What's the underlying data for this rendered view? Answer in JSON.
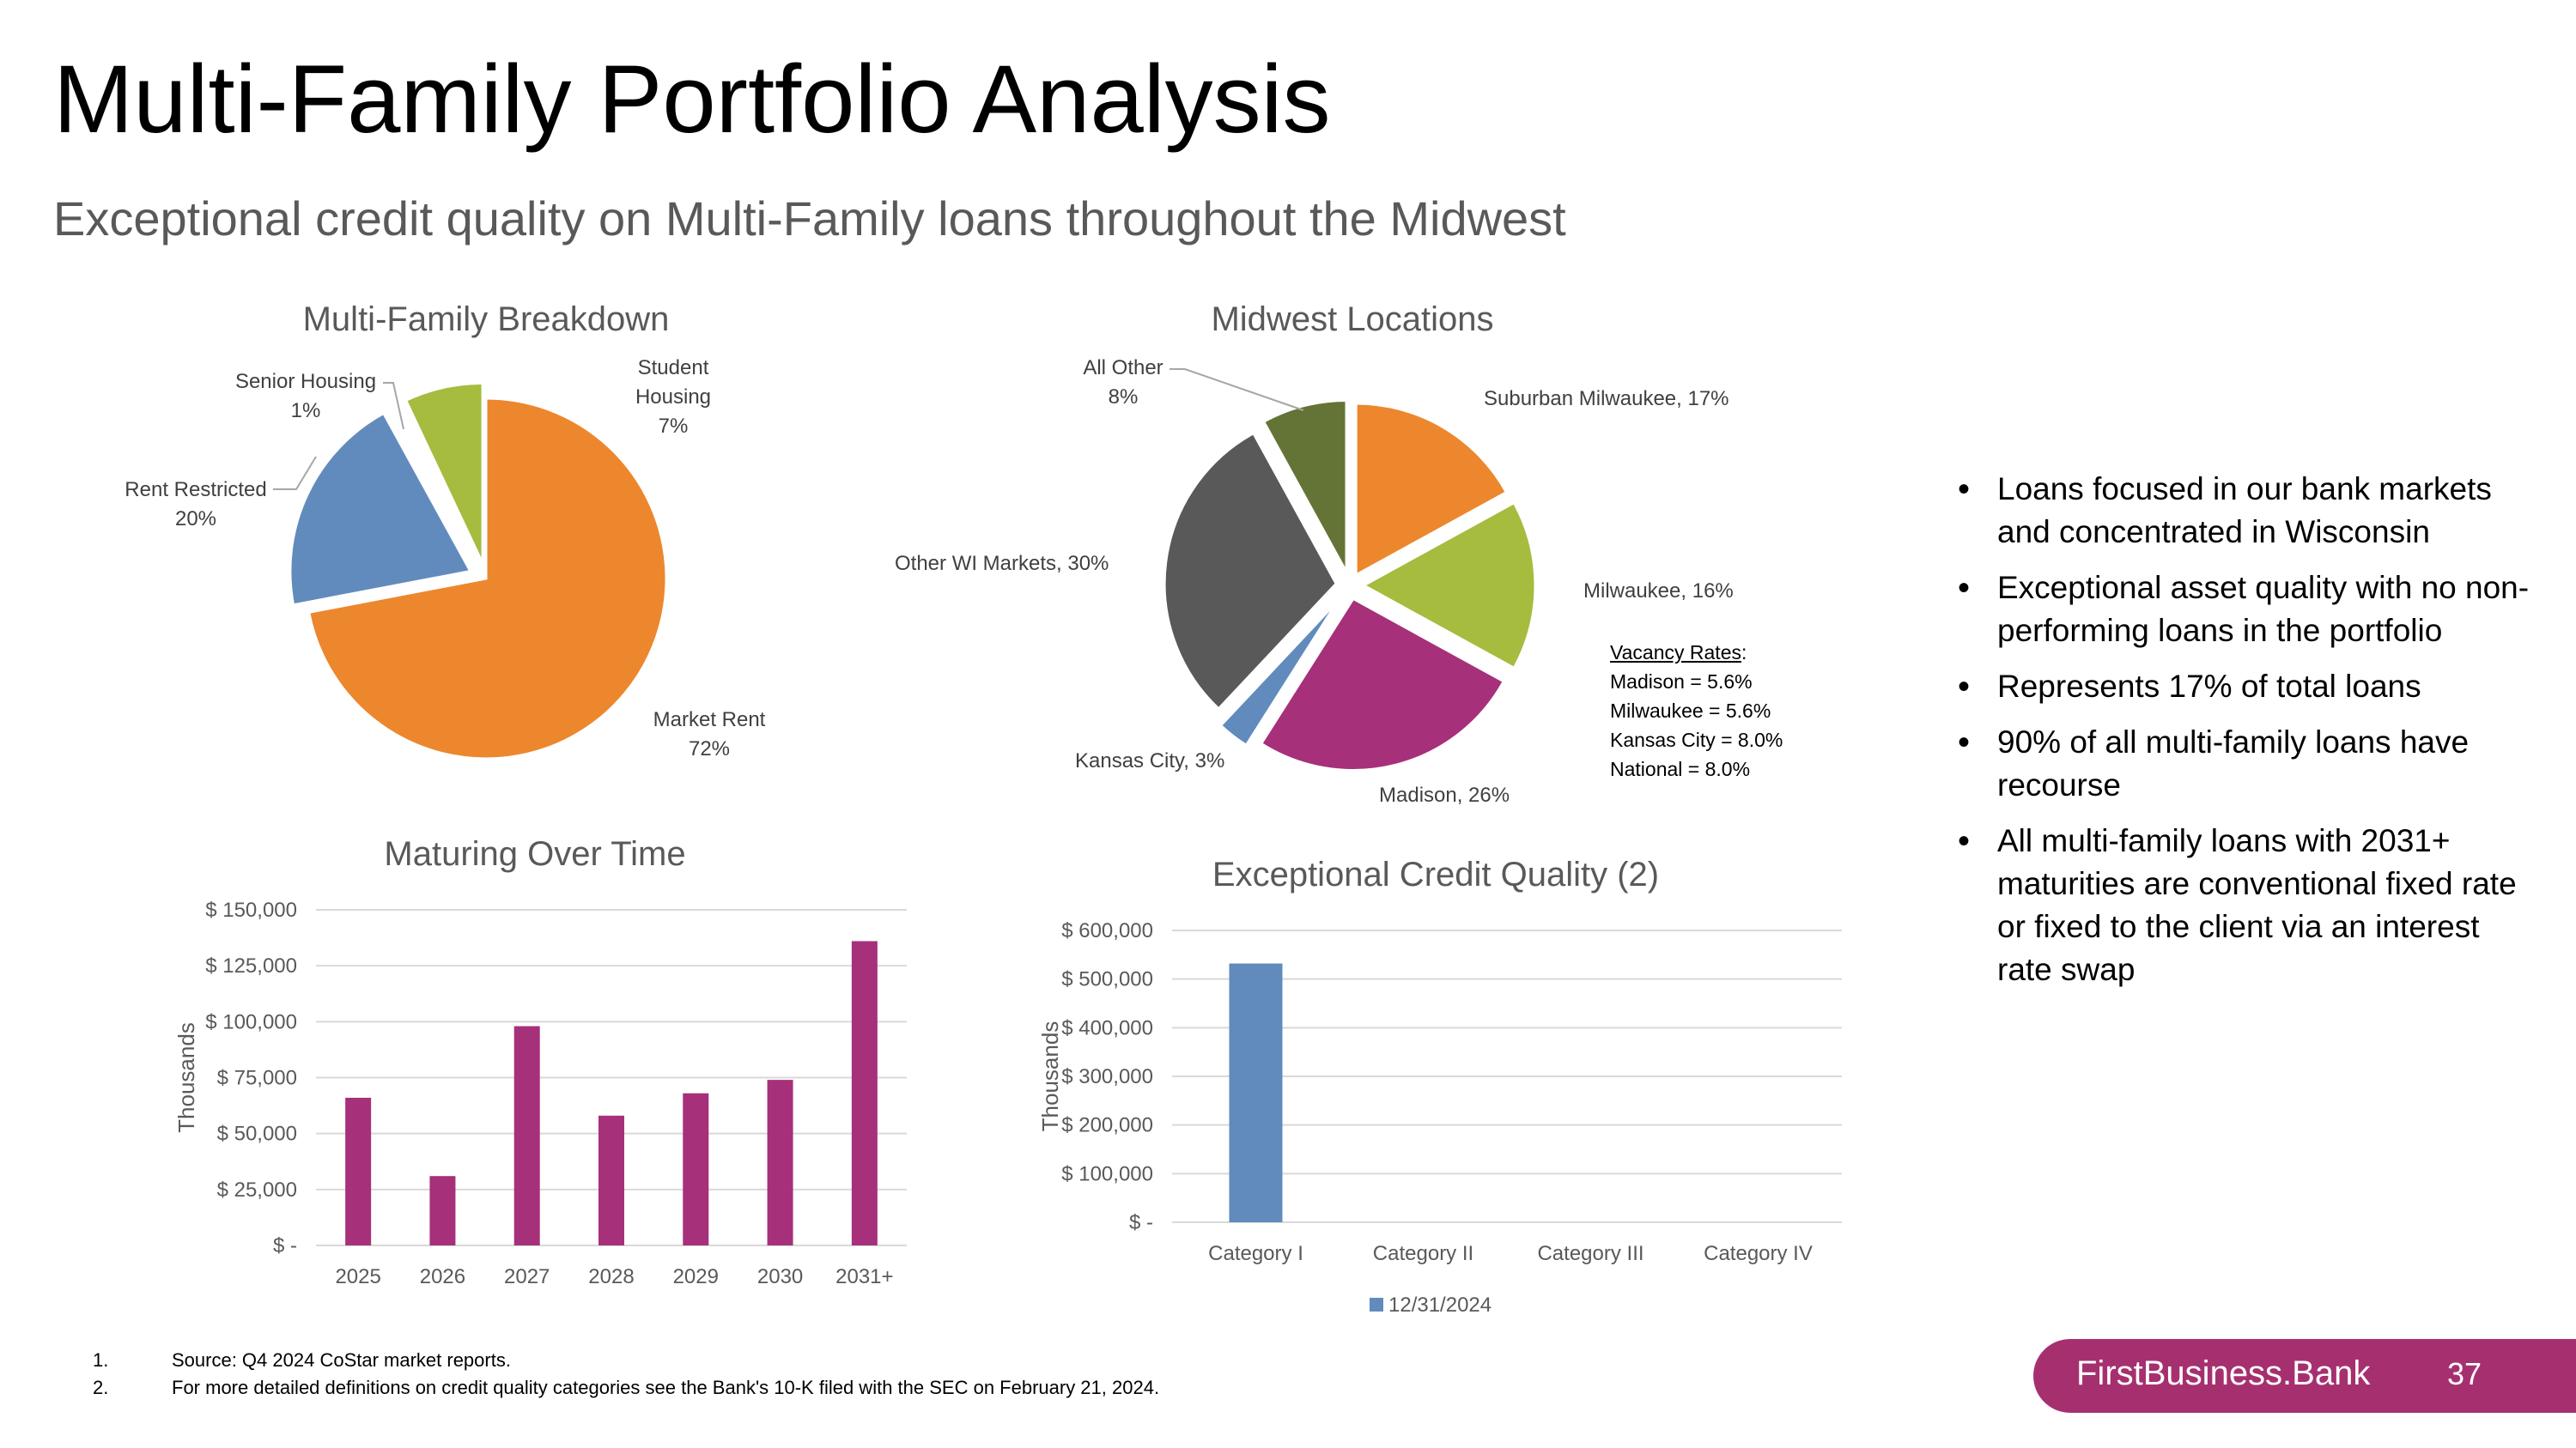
{
  "title": "Multi-Family Portfolio Analysis",
  "subtitle": "Exceptional credit quality on Multi-Family loans throughout the Midwest",
  "chart_data": [
    {
      "type": "pie",
      "title": "Multi-Family Breakdown",
      "slices": [
        {
          "label_top": "Market Rent",
          "value_label": "72%",
          "value": 72,
          "color": "#ed872d"
        },
        {
          "label_top": "Rent Restricted",
          "value_label": "20%",
          "value": 20,
          "color": "#628bbd"
        },
        {
          "label_top": "Senior Housing",
          "value_label": "1%",
          "value": 1,
          "color": "#ffffff"
        },
        {
          "label_top": "Student Housing",
          "label_lines": [
            "Student",
            "Housing"
          ],
          "value_label": "7%",
          "value": 7,
          "color": "#a5bc3f"
        }
      ]
    },
    {
      "type": "pie",
      "title": "Midwest Locations",
      "slices": [
        {
          "label": "Suburban Milwaukee, 17%",
          "value": 17,
          "color": "#ed872d"
        },
        {
          "label": "Milwaukee, 16%",
          "value": 16,
          "color": "#a5bc3f"
        },
        {
          "label": "Madison, 26%",
          "value": 26,
          "color": "#a6307a"
        },
        {
          "label": "Kansas City, 3%",
          "value": 3,
          "color": "#628bbd"
        },
        {
          "label": "Other WI Markets, 30%",
          "value": 30,
          "color": "#595959"
        },
        {
          "label_top": "All Other",
          "value_label": "8%",
          "value": 8,
          "color": "#647436"
        }
      ]
    },
    {
      "type": "bar",
      "title": "Maturing Over Time",
      "ylabel": "Thousands",
      "categories": [
        "2025",
        "2026",
        "2027",
        "2028",
        "2029",
        "2030",
        "2031+"
      ],
      "values": [
        66000,
        31000,
        98000,
        58000,
        68000,
        74000,
        136000
      ],
      "ylim": [
        0,
        150000
      ],
      "ytick_values": [
        0,
        25000,
        50000,
        75000,
        100000,
        125000,
        150000
      ],
      "yticks": [
        "$ -",
        "$ 25,000",
        "$ 50,000",
        "$ 75,000",
        "$ 100,000",
        "$ 125,000",
        "$ 150,000"
      ],
      "color": "#a6307a"
    },
    {
      "type": "bar",
      "title": "Exceptional Credit Quality (2)",
      "ylabel": "Thousands",
      "categories": [
        "Category I",
        "Category II",
        "Category III",
        "Category IV"
      ],
      "series": [
        {
          "name": "12/31/2024",
          "values": [
            532000,
            0,
            0,
            0
          ]
        }
      ],
      "ylim": [
        0,
        600000
      ],
      "ytick_values": [
        0,
        100000,
        200000,
        300000,
        400000,
        500000,
        600000
      ],
      "yticks": [
        "$ -",
        "$ 100,000",
        "$ 200,000",
        "$ 300,000",
        "$ 400,000",
        "$ 500,000",
        "$ 600,000"
      ],
      "color": "#628bbd"
    }
  ],
  "vacancy": {
    "heading": "Vacancy Rates",
    "colon": ":",
    "lines": [
      "Madison = 5.6%",
      "Milwaukee = 5.6%",
      "Kansas City = 8.0%",
      "National = 8.0%"
    ]
  },
  "bullets": [
    "Loans focused in our bank markets and concentrated in Wisconsin",
    "Exceptional asset quality with no non-performing loans in the portfolio",
    "Represents 17% of total loans",
    "90% of all multi-family loans have recourse",
    "All multi-family loans with 2031+ maturities are conventional fixed rate or fixed to the client via an interest rate swap"
  ],
  "footnotes": [
    {
      "num": "1.",
      "text": "Source: Q4 2024 CoStar market reports."
    },
    {
      "num": "2.",
      "text": "For more detailed definitions on credit quality categories see the Bank's 10-K filed with the SEC on February 21, 2024."
    }
  ],
  "brand": {
    "name": "FirstBusiness.Bank",
    "page": "37"
  }
}
